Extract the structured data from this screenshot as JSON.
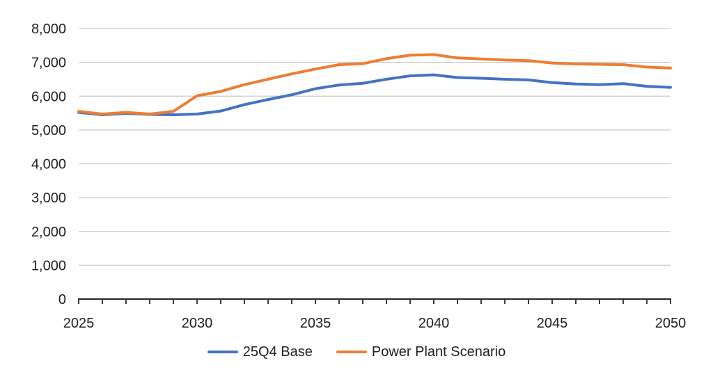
{
  "chart_data": {
    "type": "line",
    "x": [
      2025,
      2026,
      2027,
      2028,
      2029,
      2030,
      2031,
      2032,
      2033,
      2034,
      2035,
      2036,
      2037,
      2038,
      2039,
      2040,
      2041,
      2042,
      2043,
      2044,
      2045,
      2046,
      2047,
      2048,
      2049,
      2050
    ],
    "series": [
      {
        "name": "25Q4 Base",
        "color": "#4472C4",
        "values": [
          5520,
          5450,
          5490,
          5460,
          5450,
          5470,
          5560,
          5750,
          5900,
          6040,
          6220,
          6330,
          6380,
          6500,
          6600,
          6630,
          6550,
          6530,
          6500,
          6480,
          6400,
          6360,
          6340,
          6370,
          6290,
          6260
        ]
      },
      {
        "name": "Power Plant Scenario",
        "color": "#ED7D31",
        "values": [
          5550,
          5470,
          5520,
          5470,
          5550,
          6010,
          6140,
          6340,
          6500,
          6660,
          6800,
          6930,
          6960,
          7110,
          7210,
          7230,
          7130,
          7100,
          7070,
          7050,
          6980,
          6950,
          6940,
          6930,
          6860,
          6830
        ]
      }
    ],
    "ylim": [
      0,
      8000
    ],
    "yticks": [
      0,
      1000,
      2000,
      3000,
      4000,
      5000,
      6000,
      7000,
      8000
    ],
    "ytick_labels": [
      "0",
      "1,000",
      "2,000",
      "3,000",
      "4,000",
      "5,000",
      "6,000",
      "7,000",
      "8,000"
    ],
    "xticks": [
      2025,
      2030,
      2035,
      2040,
      2045,
      2050
    ],
    "xtick_labels": [
      "2025",
      "2030",
      "2035",
      "2040",
      "2045",
      "2050"
    ],
    "minor_ticks": "every year",
    "grid": "horizontal",
    "legend_position": "bottom-center"
  },
  "styles": {
    "background": "#FFFFFF",
    "grid_color": "#C9C9C9",
    "axis_color": "#262626",
    "text_color": "#1F1F1F"
  }
}
